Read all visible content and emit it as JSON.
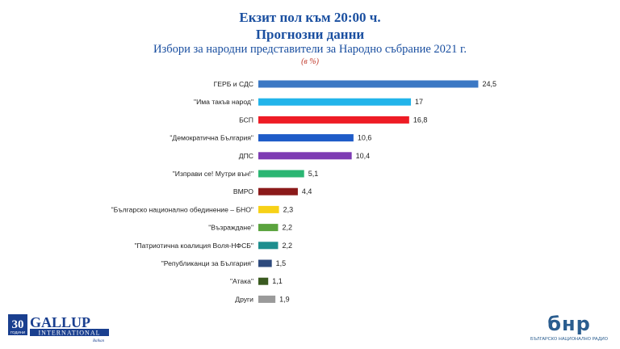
{
  "chart_data": {
    "type": "bar",
    "orientation": "horizontal",
    "title": "Екзит пол към 20:00 ч.",
    "subtitle": "Прогнозни данни",
    "subtitle2": "Избори за народни представители за Народно събрание 2021 г.",
    "unit_note": "(в %)",
    "categories": [
      "ГЕРБ и СДС",
      "\"Има такъв народ\"",
      "БСП",
      "\"Демократична България\"",
      "ДПС",
      "\"Изправи се! Мутри вън!\"",
      "ВМРО",
      "\"Българско национално обединение – БНО\"",
      "\"Възраждане\"",
      "\"Патриотична коалиция Воля-НФСБ\"",
      "\"Републиканци за България\"",
      "\"Атака\"",
      "Други"
    ],
    "values": [
      24.5,
      17,
      16.8,
      10.6,
      10.4,
      5.1,
      4.4,
      2.3,
      2.2,
      2.2,
      1.5,
      1.1,
      1.9
    ],
    "value_labels": [
      "24,5",
      "17",
      "16,8",
      "10,6",
      "10,4",
      "5,1",
      "4,4",
      "2,3",
      "2,2",
      "2,2",
      "1,5",
      "1,1",
      "1,9"
    ],
    "colors": [
      "#3b78c4",
      "#22b4ea",
      "#ee1c25",
      "#1f5cc8",
      "#7d3bb3",
      "#2bb673",
      "#8b1a1a",
      "#f7d117",
      "#5aa33d",
      "#1d8e8e",
      "#2e4a7d",
      "#3a5a20",
      "#9a9a9a"
    ],
    "xlim": [
      0,
      25
    ],
    "grid": false,
    "legend": "none"
  },
  "logos": {
    "gallup_years": "30",
    "gallup_years_word": "ГОДИНИ",
    "gallup_name": "GALLUP",
    "gallup_sub": "INTERNATIONAL",
    "gallup_region": "Balkan",
    "bnr_mark": "бнр",
    "bnr_name": "БЪЛГАРСКО НАЦИОНАЛНО РАДИО"
  }
}
